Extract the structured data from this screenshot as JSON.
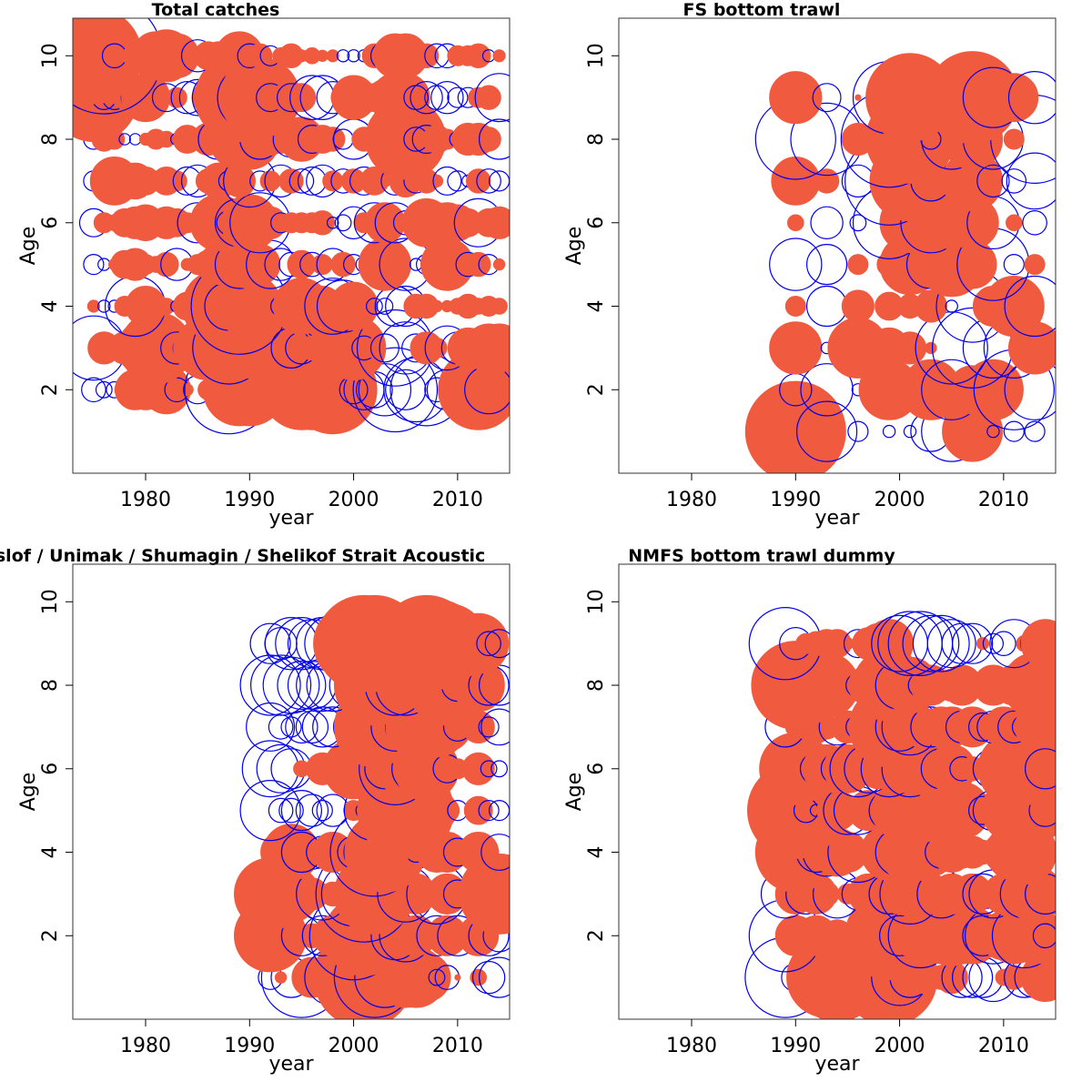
{
  "colors": {
    "positive": "#F05A3F",
    "negative": "#0000EE",
    "frame": "#333333"
  },
  "chart_data": [
    {
      "type": "scatter",
      "variant": "bubble",
      "title": "Total catches",
      "xlabel": "year",
      "ylabel": "Age",
      "xlim": [
        1973,
        2015
      ],
      "ylim": [
        0,
        10.9
      ],
      "xticks": [
        1980,
        1990,
        2000,
        2010
      ],
      "yticks": [
        2,
        4,
        6,
        8,
        10
      ],
      "years": [
        1975,
        1976,
        1977,
        1978,
        1979,
        1980,
        1981,
        1982,
        1983,
        1984,
        1985,
        1986,
        1987,
        1988,
        1989,
        1990,
        1991,
        1992,
        1993,
        1994,
        1995,
        1996,
        1997,
        1998,
        1999,
        2000,
        2001,
        2002,
        2003,
        2004,
        2005,
        2006,
        2007,
        2008,
        2009,
        2010,
        2011,
        2012,
        2013,
        2014
      ],
      "ages": [
        2,
        3,
        4,
        5,
        6,
        7,
        8,
        9,
        10
      ],
      "residuals": [
        [
          -0.6,
          -0.4,
          -0.4,
          0.5,
          1.0,
          1.0,
          0.8,
          1.2,
          -0.6,
          0.3,
          -0.7,
          0.5,
          0.8,
          -2.2,
          1.8,
          1.8,
          1.2,
          0.6,
          0.5,
          0.7,
          2.0,
          2.0,
          1.6,
          2.2,
          1.3,
          -0.7,
          -1.0,
          -0.9,
          -1.3,
          -2.1,
          -1.0,
          -1.6,
          -1.8,
          -0.6,
          -1.0,
          -0.7,
          0.8,
          2.0,
          -1.2,
          0.4
        ],
        [
          -1.6,
          0.8,
          0.6,
          0.8,
          0.7,
          1.4,
          1.8,
          1.2,
          -0.8,
          -0.7,
          1.2,
          1.6,
          1.4,
          -1.8,
          1.2,
          1.5,
          1.0,
          1.7,
          2.2,
          -1.0,
          -0.8,
          0.6,
          0.8,
          0.9,
          1.5,
          1.6,
          -0.6,
          0.5,
          -0.7,
          -1.9,
          -1.3,
          -0.7,
          0.8,
          0.5,
          -1.1,
          -0.8,
          1.0,
          0.6,
          1.2,
          1.2
        ],
        [
          0.3,
          -0.3,
          -0.3,
          0.5,
          -1.5,
          1.0,
          0.6,
          0.4,
          -0.3,
          0.7,
          0.4,
          1.3,
          1.8,
          -1.2,
          -2.4,
          1.6,
          1.0,
          0.6,
          -0.5,
          0.7,
          1.4,
          1.0,
          1.0,
          -1.4,
          -1.3,
          1.2,
          0.3,
          -0.4,
          -0.4,
          -1.0,
          -1.0,
          0.6,
          0.6,
          0.2,
          0.2,
          0.4,
          0.6,
          0.4,
          0.5,
          0.4
        ],
        [
          -0.5,
          -0.3,
          0.2,
          0.7,
          0.8,
          0.5,
          0.4,
          0.6,
          -0.8,
          0.3,
          0.5,
          0.7,
          1.0,
          0.3,
          -1.2,
          1.2,
          1.0,
          -1.2,
          -0.8,
          -0.6,
          0.7,
          -0.6,
          0.5,
          -0.8,
          0.6,
          -0.5,
          -0.4,
          0.6,
          1.3,
          0.5,
          -1.3,
          -0.3,
          -0.5,
          0.8,
          1.3,
          0.4,
          -0.6,
          0.6,
          -0.5,
          0.2
        ],
        [
          -0.7,
          0.5,
          0.4,
          0.7,
          0.8,
          0.9,
          0.5,
          0.8,
          0.7,
          0.5,
          -1.0,
          -0.8,
          1.4,
          -0.6,
          -1.2,
          1.4,
          -1.5,
          0.8,
          -0.5,
          0.5,
          0.5,
          0.5,
          0.6,
          -0.2,
          -0.4,
          -0.8,
          0.5,
          -1.0,
          1.0,
          -1.0,
          -0.6,
          0.5,
          1.2,
          1.0,
          1.0,
          0.9,
          0.7,
          -1.2,
          0.7,
          0.8
        ],
        [
          -0.5,
          0.6,
          1.2,
          0.2,
          0.9,
          0.7,
          0.5,
          0.7,
          0.5,
          -0.7,
          -0.8,
          0.6,
          0.9,
          -0.5,
          0.8,
          -1.3,
          -0.5,
          0.5,
          -0.8,
          0.6,
          -0.6,
          -0.7,
          -0.8,
          0.5,
          -0.6,
          0.6,
          -0.7,
          0.7,
          0.3,
          -0.7,
          0.8,
          -0.6,
          0.6,
          0.3,
          -0.7,
          -0.5,
          -0.3,
          0.6,
          -0.6,
          -0.5
        ],
        [
          -0.5,
          0.6,
          0.5,
          -0.2,
          -0.2,
          0.3,
          0.5,
          0.4,
          -0.3,
          0.7,
          0.5,
          0.8,
          -1.0,
          1.0,
          1.5,
          1.5,
          -1.0,
          0.8,
          0.7,
          -0.9,
          1.1,
          -0.7,
          0.7,
          0.6,
          -0.5,
          -1.0,
          0.6,
          0.5,
          0.7,
          0.8,
          2.0,
          -0.6,
          -0.7,
          0.7,
          0.5,
          -0.4,
          0.8,
          0.8,
          0.6,
          -1.0
        ],
        [
          2.2,
          -0.6,
          -0.6,
          0.6,
          -0.7,
          1.2,
          0.7,
          -0.7,
          0.5,
          -0.8,
          -0.9,
          0.8,
          -1.3,
          1.0,
          2.2,
          -1.6,
          2.0,
          -0.7,
          0.6,
          -0.7,
          0.7,
          -1.1,
          -1.1,
          -0.8,
          0.6,
          1.1,
          0.6,
          0.7,
          0.9,
          1.2,
          1.2,
          -0.6,
          -0.8,
          -0.6,
          -0.8,
          -0.5,
          -0.5,
          0.5,
          0.6,
          -1.2
        ],
        [
          2.4,
          -2.9,
          -0.6,
          0.3,
          0.6,
          0.4,
          1.2,
          1.3,
          1.1,
          0.6,
          -0.8,
          0.7,
          0.7,
          -0.5,
          1.2,
          -0.6,
          0.6,
          -0.5,
          0.4,
          0.6,
          0.3,
          0.4,
          0.2,
          0.3,
          -0.3,
          -0.3,
          -0.3,
          0.6,
          -0.7,
          1.1,
          1.1,
          0.7,
          0.6,
          -0.6,
          -0.6,
          0.5,
          0.5,
          0.6,
          -0.3,
          0.3
        ]
      ]
    },
    {
      "type": "scatter",
      "variant": "bubble",
      "title": "FS bottom trawl",
      "xlabel": "year",
      "ylabel": "Age",
      "xlim": [
        1973,
        2015
      ],
      "ylim": [
        0,
        10.9
      ],
      "xticks": [
        1980,
        1990,
        2000,
        2010
      ],
      "yticks": [
        2,
        4,
        6,
        8,
        10
      ],
      "years": [
        1990,
        1993,
        1996,
        1999,
        2001,
        2003,
        2005,
        2007,
        2009,
        2011,
        2013
      ],
      "ages": [
        1,
        2,
        3,
        4,
        5,
        6,
        7,
        8,
        9
      ],
      "residuals": [
        [
          2.5,
          -1.5,
          -0.5,
          -0.3,
          -0.3,
          -1.0,
          -1.5,
          1.5,
          -0.3,
          -0.5,
          -0.5
        ],
        [
          -0.8,
          -1.3,
          -0.3,
          1.5,
          1.0,
          1.5,
          -1.5,
          1.2,
          1.5,
          -2.0,
          -1.5
        ],
        [
          1.3,
          -0.2,
          1.5,
          1.0,
          0.8,
          0.2,
          -1.8,
          -2.0,
          -1.5,
          -1.5,
          1.3
        ],
        [
          0.5,
          -1.0,
          0.8,
          0.7,
          0.6,
          0.8,
          -0.3,
          -1.8,
          1.0,
          1.5,
          -1.5
        ],
        [
          -1.3,
          -1.0,
          0.5,
          0.6,
          1.5,
          -1.2,
          1.6,
          1.2,
          -1.8,
          -0.5,
          0.5
        ],
        [
          0.4,
          -0.8,
          -0.4,
          -1.8,
          1.5,
          -1.5,
          1.3,
          1.3,
          -1.3,
          0.4,
          -0.6
        ],
        [
          1.2,
          0.6,
          -0.8,
          -2.2,
          2.0,
          -1.0,
          -0.3,
          1.5,
          -0.8,
          -0.6,
          -1.4
        ],
        [
          -2.0,
          -1.8,
          0.8,
          -2.4,
          2.2,
          -0.5,
          -1.5,
          1.5,
          -1.5,
          0.5,
          -2.2
        ],
        [
          1.3,
          -0.7,
          0.1,
          -1.8,
          2.2,
          1.5,
          1.4,
          2.3,
          -1.5,
          1.2,
          -1.3
        ]
      ]
    },
    {
      "type": "scatter",
      "variant": "bubble",
      "title": "Bogoslof / Unimak / Shumagin / Shelikof Strait Acoustic",
      "xlabel": "year",
      "ylabel": "Age",
      "xlim": [
        1973,
        2015
      ],
      "ylim": [
        0,
        10.9
      ],
      "xticks": [
        1980,
        1990,
        2000,
        2010
      ],
      "yticks": [
        2,
        4,
        6,
        8,
        10
      ],
      "years": [
        1992,
        1993,
        1994,
        1995,
        1996,
        1997,
        1998,
        2000,
        2001,
        2002,
        2003,
        2004,
        2005,
        2006,
        2007,
        2008,
        2009,
        2010,
        2012,
        2013,
        2014
      ],
      "ages": [
        1,
        2,
        3,
        4,
        5,
        6,
        7,
        8,
        9
      ],
      "residuals": [
        [
          -0.6,
          0.2,
          -1.0,
          -2.0,
          1.0,
          0.8,
          -1.4,
          0.5,
          2.5,
          -2.0,
          -1.5,
          1.0,
          1.5,
          1.5,
          1.2,
          -0.4,
          -0.6,
          0.1,
          0.4,
          -0.8,
          -1.0
        ],
        [
          1.8,
          1.2,
          0.8,
          -1.0,
          0.6,
          -1.0,
          1.0,
          -2.2,
          2.0,
          1.2,
          0.8,
          -1.2,
          -1.3,
          1.0,
          0.7,
          -1.0,
          1.0,
          -1.0,
          1.0,
          -1.0,
          -0.8
        ],
        [
          1.8,
          1.5,
          1.4,
          1.0,
          0.8,
          -1.3,
          0.6,
          -1.6,
          -2.4,
          2.0,
          0.2,
          0.6,
          -1.4,
          1.0,
          0.6,
          -1.5,
          1.0,
          -0.7,
          0.8,
          1.0,
          2.0
        ],
        [
          0.4,
          1.0,
          1.4,
          -1.0,
          0.6,
          -0.8,
          1.0,
          -0.8,
          -1.0,
          -2.2,
          2.0,
          1.5,
          0.8,
          -0.5,
          0.6,
          1.0,
          1.0,
          -0.7,
          1.0,
          0.5,
          -0.9
        ],
        [
          -1.5,
          -0.6,
          -0.6,
          -1.0,
          -0.8,
          -0.5,
          -0.8,
          0.5,
          -0.4,
          -1.5,
          0.6,
          -1.5,
          2.4,
          1.5,
          1.4,
          1.0,
          0.6,
          -0.5,
          0.7,
          -0.5,
          -0.5
        ],
        [
          -1.4,
          -1.2,
          -1.0,
          0.4,
          0.3,
          0.8,
          0.3,
          1.5,
          0.8,
          1.2,
          -1.0,
          -1.8,
          1.4,
          -1.2,
          1.6,
          1.0,
          -0.7,
          0.5,
          0.8,
          -0.4,
          -0.4
        ],
        [
          -1.2,
          -0.6,
          -0.5,
          -0.8,
          -0.8,
          -1.0,
          -1.0,
          -1.0,
          1.2,
          2.0,
          1.8,
          -1.2,
          -1.0,
          1.5,
          1.4,
          1.5,
          1.2,
          -0.7,
          0.8,
          -0.5,
          -0.9
        ],
        [
          -1.5,
          -1.5,
          -1.4,
          -1.2,
          -1.2,
          -1.3,
          -1.3,
          -1.2,
          -0.6,
          2.0,
          0.6,
          -1.5,
          -1.5,
          0.6,
          1.2,
          1.2,
          2.0,
          -0.8,
          1.3,
          -1.0,
          -1.0
        ],
        [
          -1.0,
          -0.8,
          -1.3,
          -1.3,
          -1.2,
          -1.3,
          -1.4,
          2.0,
          2.4,
          2.4,
          2.0,
          1.6,
          -0.6,
          2.0,
          2.4,
          2.2,
          2.0,
          -0.3,
          1.5,
          -0.6,
          -0.7
        ]
      ]
    },
    {
      "type": "scatter",
      "variant": "bubble",
      "title": "NMFS bottom trawl dummy",
      "xlabel": "year",
      "ylabel": "Age",
      "xlim": [
        1973,
        2015
      ],
      "ylim": [
        0,
        10.9
      ],
      "xticks": [
        1980,
        1990,
        2000,
        2010
      ],
      "yticks": [
        2,
        4,
        6,
        8,
        10
      ],
      "years": [
        1989,
        1990,
        1991,
        1992,
        1993,
        1994,
        1995,
        1996,
        1997,
        1998,
        1999,
        2000,
        2001,
        2002,
        2003,
        2004,
        2005,
        2006,
        2007,
        2008,
        2009,
        2010,
        2011,
        2012,
        2013,
        2014
      ],
      "ages": [
        1,
        2,
        3,
        4,
        5,
        6,
        7,
        8,
        9
      ],
      "residuals": [
        [
          -2.0,
          -0.7,
          0.8,
          1.2,
          2.0,
          2.2,
          0.5,
          -0.4,
          -1.2,
          0.8,
          2.4,
          -1.4,
          -1.0,
          0.8,
          0.5,
          0.6,
          0.8,
          -1.0,
          -1.0,
          -1.0,
          -1.2,
          0.4,
          0.6,
          -1.0,
          -1.0,
          1.2
        ],
        [
          -1.8,
          1.0,
          0.6,
          1.0,
          0.6,
          0.8,
          0.6,
          0.6,
          1.0,
          1.2,
          2.2,
          -1.0,
          1.0,
          -1.6,
          1.0,
          1.4,
          1.5,
          1.4,
          1.4,
          -1.0,
          -1.4,
          1.2,
          1.4,
          -1.6,
          1.4,
          -0.6
        ],
        [
          -1.2,
          1.0,
          -1.0,
          1.0,
          0.6,
          -1.2,
          0.5,
          -0.8,
          1.0,
          0.7,
          -1.0,
          1.0,
          -1.5,
          0.8,
          1.0,
          -1.2,
          1.0,
          0.6,
          1.0,
          -1.0,
          -1.2,
          1.0,
          1.2,
          -1.2,
          1.4,
          -1.0
        ],
        [
          -0.8,
          2.0,
          1.0,
          -1.0,
          -1.2,
          1.2,
          1.0,
          -1.5,
          0.6,
          0.7,
          1.4,
          -1.2,
          1.5,
          1.4,
          1.2,
          -0.8,
          1.0,
          0.8,
          0.8,
          0.6,
          0.3,
          1.0,
          1.4,
          1.6,
          0.8,
          0.2
        ],
        [
          -1.6,
          2.4,
          -0.6,
          -0.3,
          0.5,
          1.0,
          -1.2,
          -1.2,
          1.0,
          0.8,
          -1.0,
          1.4,
          -1.0,
          1.6,
          -1.0,
          1.6,
          -0.8,
          1.4,
          0.6,
          -0.7,
          -1.0,
          0.8,
          1.6,
          -1.0,
          1.6,
          -0.8
        ],
        [
          -1.0,
          1.8,
          1.0,
          -0.8,
          1.2,
          -0.8,
          1.2,
          -1.4,
          -1.2,
          1.0,
          -1.4,
          1.2,
          -1.4,
          1.2,
          1.4,
          -1.0,
          1.2,
          -0.6,
          0.6,
          0.4,
          -1.0,
          1.2,
          1.8,
          -1.2,
          1.8,
          -1.0
        ],
        [
          -1.0,
          0.5,
          0.6,
          0.8,
          0.6,
          -0.9,
          0.8,
          -0.6,
          1.0,
          0.6,
          2.0,
          -1.2,
          -1.4,
          1.0,
          -1.0,
          1.0,
          1.0,
          -0.8,
          1.0,
          -0.7,
          -0.8,
          1.0,
          -0.8,
          -0.6,
          1.0,
          1.0
        ],
        [
          -1.4,
          2.2,
          1.4,
          1.4,
          1.6,
          1.0,
          0.8,
          -0.6,
          1.0,
          1.0,
          1.8,
          -1.2,
          1.4,
          -0.6,
          1.0,
          0.5,
          0.8,
          1.0,
          0.6,
          0.5,
          1.0,
          0.7,
          1.0,
          1.2,
          1.6,
          1.4
        ],
        [
          -1.8,
          -0.8,
          0.5,
          0.6,
          0.7,
          0.7,
          0.3,
          -0.7,
          0.8,
          1.0,
          1.2,
          -1.4,
          -1.6,
          -1.6,
          -1.4,
          -1.4,
          -1.2,
          -1.0,
          -1.0,
          0.3,
          -0.5,
          -0.6,
          -1.2,
          0.4,
          -0.7,
          1.2
        ]
      ]
    }
  ]
}
